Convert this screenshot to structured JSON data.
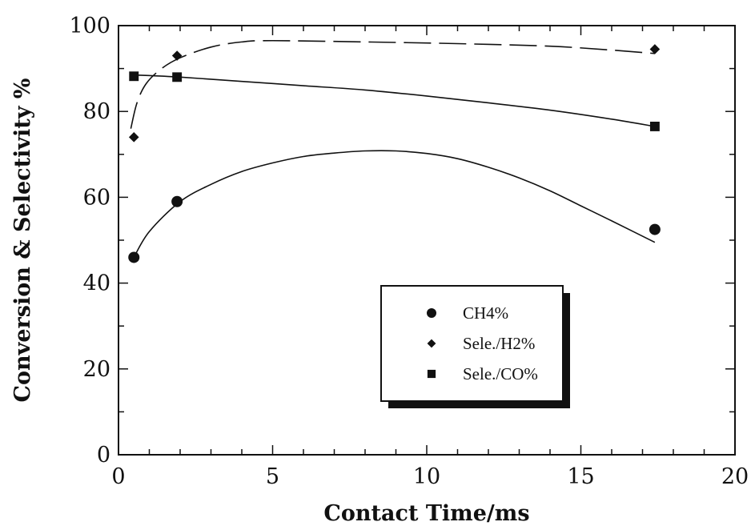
{
  "chart_data": {
    "type": "scatter",
    "xlabel": "Contact Time/ms",
    "ylabel": "Conversion & Selectivity %",
    "xlim": [
      0,
      20
    ],
    "ylim": [
      0,
      100
    ],
    "x_ticks": [
      "0",
      "5",
      "10",
      "15",
      "20"
    ],
    "y_ticks": [
      "0",
      "20",
      "40",
      "60",
      "80",
      "100"
    ],
    "grid": false,
    "legend_position": "center-right",
    "series": [
      {
        "name": "CH4%",
        "marker": "circle",
        "color": "#111111",
        "points": [
          [
            0.5,
            46
          ],
          [
            1.9,
            59
          ],
          [
            17.4,
            52.5
          ]
        ],
        "fit": [
          [
            0.5,
            46
          ],
          [
            1,
            52
          ],
          [
            2,
            59
          ],
          [
            3,
            63
          ],
          [
            4,
            66
          ],
          [
            5,
            68
          ],
          [
            6,
            69.5
          ],
          [
            7,
            70.3
          ],
          [
            8,
            70.8
          ],
          [
            9,
            70.8
          ],
          [
            10,
            70.2
          ],
          [
            11,
            69
          ],
          [
            12,
            67
          ],
          [
            13,
            64.5
          ],
          [
            14,
            61.5
          ],
          [
            15,
            58
          ],
          [
            16,
            54.5
          ],
          [
            17.4,
            49.5
          ]
        ],
        "fit_style": "solid"
      },
      {
        "name": "Sele./H2%",
        "marker": "diamond",
        "color": "#111111",
        "points": [
          [
            0.5,
            74
          ],
          [
            1.9,
            93
          ],
          [
            17.4,
            94.5
          ]
        ],
        "fit": [
          [
            0.4,
            76
          ],
          [
            0.6,
            82
          ],
          [
            0.9,
            86.5
          ],
          [
            1.4,
            90
          ],
          [
            2,
            92.5
          ],
          [
            3,
            95
          ],
          [
            4,
            96.2
          ],
          [
            5,
            96.5
          ],
          [
            8,
            96.2
          ],
          [
            11,
            95.8
          ],
          [
            14,
            95.2
          ],
          [
            16,
            94.3
          ],
          [
            17.4,
            93.5
          ]
        ],
        "fit_style": "dashed"
      },
      {
        "name": "Sele./CO%",
        "marker": "square",
        "color": "#111111",
        "points": [
          [
            0.5,
            88.2
          ],
          [
            1.9,
            88
          ],
          [
            17.4,
            76.5
          ]
        ],
        "fit": [
          [
            0.5,
            88.5
          ],
          [
            2,
            88
          ],
          [
            4,
            87
          ],
          [
            6,
            86
          ],
          [
            8,
            85
          ],
          [
            10,
            83.6
          ],
          [
            12,
            82
          ],
          [
            14,
            80.3
          ],
          [
            16,
            78.2
          ],
          [
            17.4,
            76.5
          ]
        ],
        "fit_style": "solid"
      }
    ]
  }
}
